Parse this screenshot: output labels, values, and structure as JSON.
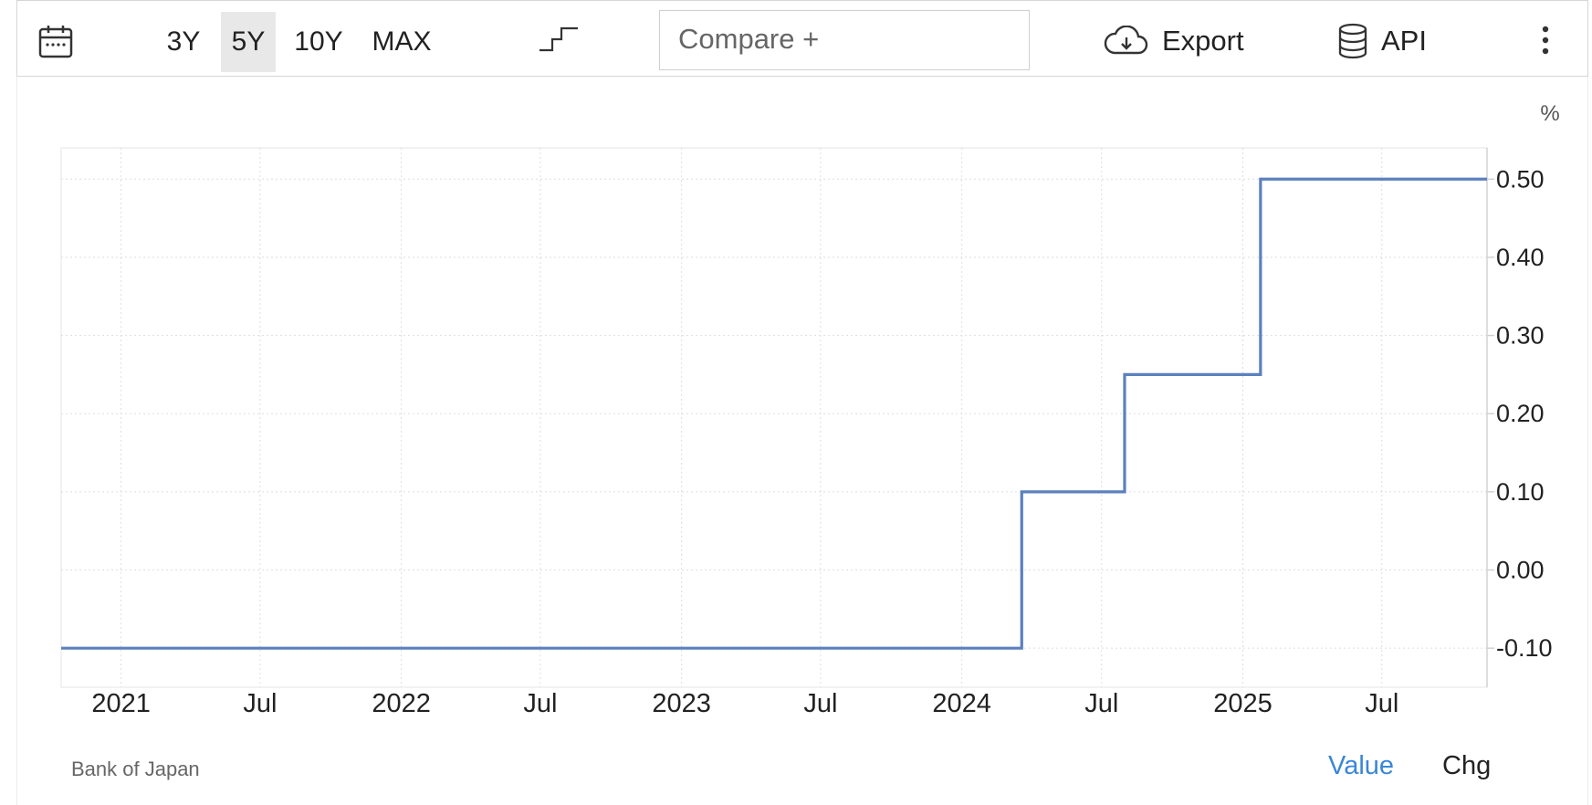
{
  "toolbar": {
    "calendar_icon": "calendar-icon",
    "ranges": [
      "3Y",
      "5Y",
      "10Y",
      "MAX"
    ],
    "active_range": "5Y",
    "chart_style_icon": "step-line-icon",
    "compare_placeholder": "Compare +",
    "export_label": "Export",
    "export_icon": "cloud-download-icon",
    "api_label": "API",
    "api_icon": "database-icon",
    "more_icon": "more-vertical-icon"
  },
  "footer": {
    "source": "Bank of Japan",
    "value_label": "Value",
    "chg_label": "Chg"
  },
  "colors": {
    "line": "#5b80bd",
    "active_tab_bg": "#e8e8e8",
    "value_link": "#3a87d6"
  },
  "chart_data": {
    "type": "line",
    "step": true,
    "unit": "%",
    "x_tick_labels": [
      "2021",
      "Jul",
      "2022",
      "Jul",
      "2023",
      "Jul",
      "2024",
      "Jul",
      "2025",
      "Jul"
    ],
    "x_tick_dates": [
      "2021-01-01",
      "2021-07-01",
      "2022-01-01",
      "2022-07-01",
      "2023-01-01",
      "2023-07-01",
      "2024-01-01",
      "2024-07-01",
      "2025-01-01",
      "2025-07-01"
    ],
    "xlim": [
      "2020-10-15",
      "2025-11-15"
    ],
    "y_ticks": [
      "0.50",
      "0.40",
      "0.30",
      "0.20",
      "0.10",
      "0.00",
      "-0.10"
    ],
    "ylim": [
      -0.15,
      0.54
    ],
    "series": [
      {
        "x": [
          "2020-10-15",
          "2024-03-19",
          "2024-07-31",
          "2025-01-24",
          "2025-11-15"
        ],
        "y": [
          -0.1,
          0.1,
          0.25,
          0.5,
          0.5
        ]
      }
    ],
    "grid": true,
    "y_axis_position": "right"
  }
}
